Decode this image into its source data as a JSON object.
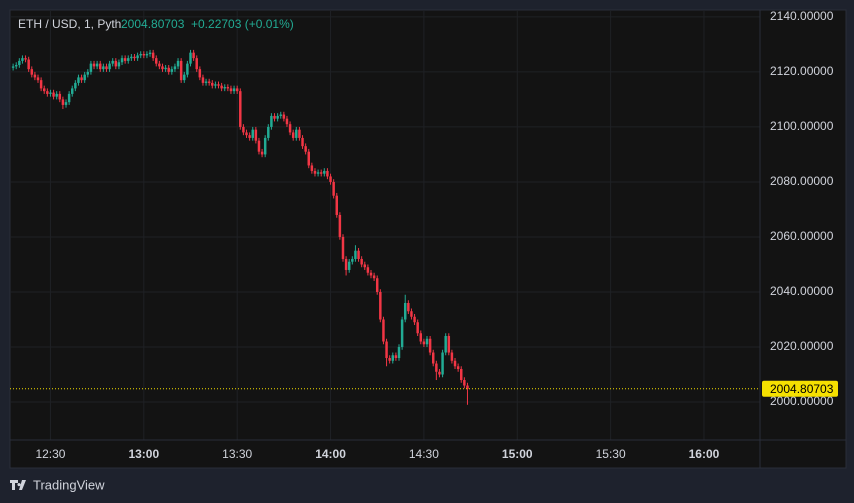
{
  "chart_data": {
    "type": "candlestick",
    "title": "ETH / USD, 1, Pyth",
    "change": "+0.22703 (+0.01%)",
    "last_price": 2004.80703,
    "footer": "TradingView",
    "up_color": "#22ab94",
    "down_color": "#f23645",
    "price_line_color": "#f5e000",
    "grid": true,
    "xlim": [
      "12:17",
      "16:18"
    ],
    "xticks": [
      "12:30",
      "13:00",
      "13:30",
      "14:00",
      "14:30",
      "15:00",
      "15:30",
      "16:00"
    ],
    "ylim": [
      1986.2,
      2142.5
    ],
    "yticks": [
      {
        "value": 2000,
        "label": "2000.00000"
      },
      {
        "value": 2020,
        "label": "2020.00000"
      },
      {
        "value": 2040,
        "label": "2040.00000"
      },
      {
        "value": 2060,
        "label": "2060.00000"
      },
      {
        "value": 2080,
        "label": "2080.00000"
      },
      {
        "value": 2100,
        "label": "2100.00000"
      },
      {
        "value": 2120,
        "label": "2120.00000"
      },
      {
        "value": 2140,
        "label": "2140.00000"
      }
    ],
    "x": [
      "12:18",
      "12:19",
      "12:20",
      "12:21",
      "12:22",
      "12:23",
      "12:24",
      "12:25",
      "12:26",
      "12:27",
      "12:28",
      "12:29",
      "12:30",
      "12:31",
      "12:32",
      "12:33",
      "12:34",
      "12:35",
      "12:36",
      "12:37",
      "12:38",
      "12:39",
      "12:40",
      "12:41",
      "12:42",
      "12:43",
      "12:44",
      "12:45",
      "12:46",
      "12:47",
      "12:48",
      "12:49",
      "12:50",
      "12:51",
      "12:52",
      "12:53",
      "12:54",
      "12:55",
      "12:56",
      "12:57",
      "12:58",
      "12:59",
      "13:00",
      "13:01",
      "13:02",
      "13:03",
      "13:04",
      "13:05",
      "13:06",
      "13:07",
      "13:08",
      "13:09",
      "13:10",
      "13:11",
      "13:12",
      "13:13",
      "13:14",
      "13:15",
      "13:16",
      "13:17",
      "13:18",
      "13:19",
      "13:20",
      "13:21",
      "13:22",
      "13:23",
      "13:24",
      "13:25",
      "13:26",
      "13:27",
      "13:28",
      "13:29",
      "13:30",
      "13:31",
      "13:32",
      "13:33",
      "13:34",
      "13:35",
      "13:36",
      "13:37",
      "13:38",
      "13:39",
      "13:40",
      "13:41",
      "13:42",
      "13:43",
      "13:44",
      "13:45",
      "13:46",
      "13:47",
      "13:48",
      "13:49",
      "13:50",
      "13:51",
      "13:52",
      "13:53",
      "13:54",
      "13:55",
      "13:56",
      "13:57",
      "13:58",
      "13:59",
      "14:00",
      "14:01",
      "14:02",
      "14:03",
      "14:04",
      "14:05",
      "14:06",
      "14:07",
      "14:08",
      "14:09",
      "14:10",
      "14:11",
      "14:12",
      "14:13",
      "14:14",
      "14:15",
      "14:16",
      "14:17",
      "14:18",
      "14:19",
      "14:20",
      "14:21",
      "14:22",
      "14:23",
      "14:24",
      "14:25",
      "14:26",
      "14:27",
      "14:28",
      "14:29",
      "14:30",
      "14:31",
      "14:32",
      "14:33",
      "14:34",
      "14:35",
      "14:36",
      "14:37",
      "14:38",
      "14:39",
      "14:40",
      "14:41",
      "14:42",
      "14:43",
      "14:44"
    ],
    "open": [
      2121.5,
      2122,
      2122.5,
      2124,
      2125,
      2124.5,
      2121,
      2119,
      2118,
      2117,
      2114,
      2113,
      2112,
      2112.5,
      2111,
      2112,
      2110,
      2108,
      2109,
      2112,
      2114,
      2116,
      2118,
      2117,
      2119,
      2120,
      2123,
      2122,
      2123,
      2121,
      2122,
      2121,
      2123,
      2124,
      2122,
      2123.5,
      2125,
      2124,
      2125,
      2125.5,
      2125,
      2126,
      2126.5,
      2126,
      2126.5,
      2127,
      2125,
      2123,
      2122,
      2121,
      2121.5,
      2120,
      2121,
      2122,
      2124,
      2117,
      2119,
      2123,
      2127,
      2125,
      2121,
      2118,
      2116,
      2116.5,
      2116,
      2115,
      2115.5,
      2115,
      2114,
      2114.5,
      2114,
      2113,
      2114,
      2113,
      2100,
      2098,
      2097,
      2096,
      2099,
      2095,
      2091,
      2090,
      2096,
      2100,
      2104,
      2103,
      2104,
      2104.5,
      2103,
      2101,
      2098,
      2096,
      2099,
      2096,
      2093,
      2091,
      2086,
      2084,
      2083,
      2083.5,
      2083,
      2084,
      2082,
      2080,
      2075,
      2068,
      2060,
      2052,
      2048,
      2051,
      2052,
      2055,
      2052,
      2050,
      2049,
      2047,
      2046,
      2045,
      2040,
      2030,
      2022,
      2016,
      2015,
      2017,
      2016,
      2020,
      2030,
      2036,
      2033,
      2031,
      2029,
      2025,
      2022,
      2021,
      2023,
      2018,
      2014,
      2011,
      2010,
      2018,
      2024,
      2018,
      2015,
      2013,
      2012,
      2008,
      2006
    ],
    "high": [
      2123,
      2123.5,
      2125,
      2126,
      2126,
      2125.5,
      2122,
      2120,
      2119,
      2118,
      2115,
      2114,
      2113.5,
      2113.5,
      2113,
      2113,
      2111,
      2110,
      2113,
      2115,
      2117,
      2119,
      2119,
      2120,
      2121,
      2124,
      2124,
      2124,
      2124,
      2123,
      2123,
      2124,
      2125,
      2125,
      2124.5,
      2126,
      2126,
      2126,
      2126.5,
      2126.5,
      2127,
      2127.5,
      2127.5,
      2127.5,
      2128,
      2128,
      2126,
      2124,
      2123,
      2122.5,
      2122.5,
      2122,
      2123,
      2125,
      2125,
      2120,
      2124,
      2128,
      2128,
      2126,
      2122,
      2119,
      2117.5,
      2117.5,
      2117,
      2116.5,
      2116.5,
      2116,
      2115.5,
      2115.5,
      2115,
      2115,
      2115,
      2114,
      2101,
      2099,
      2098,
      2100,
      2100,
      2096,
      2092,
      2097,
      2101,
      2105,
      2105,
      2105,
      2105.5,
      2105.5,
      2104,
      2102,
      2099,
      2100,
      2100,
      2097,
      2094,
      2092,
      2087,
      2085,
      2084.5,
      2084.5,
      2085,
      2085,
      2083,
      2081,
      2076,
      2069,
      2061,
      2053,
      2052,
      2053,
      2057,
      2056,
      2053,
      2051,
      2050,
      2048,
      2047,
      2046,
      2041,
      2031,
      2023,
      2017,
      2018,
      2018,
      2021,
      2031,
      2039,
      2037,
      2034,
      2032,
      2030,
      2026,
      2023,
      2024,
      2024,
      2019,
      2015,
      2012,
      2019,
      2025,
      2025,
      2019,
      2016,
      2014,
      2013,
      2009,
      2007
    ],
    "low": [
      2120.5,
      2121,
      2121.5,
      2123,
      2123.5,
      2120,
      2118,
      2117,
      2116,
      2113,
      2112,
      2111,
      2111,
      2110,
      2110,
      2109,
      2106.5,
      2107,
      2108,
      2111,
      2113,
      2115,
      2116,
      2116,
      2118,
      2119,
      2121,
      2121,
      2120,
      2120,
      2120,
      2120,
      2122,
      2121,
      2121,
      2122.5,
      2123,
      2123,
      2124,
      2124,
      2124,
      2125,
      2125,
      2125,
      2125.5,
      2124,
      2122,
      2121,
      2120,
      2120,
      2119,
      2119,
      2120,
      2121,
      2116,
      2116,
      2118,
      2122,
      2124,
      2120,
      2117,
      2115,
      2115,
      2115,
      2114,
      2114,
      2114,
      2113,
      2113,
      2113,
      2112,
      2112,
      2112,
      2099,
      2097,
      2096,
      2095,
      2095,
      2094,
      2090,
      2089,
      2089,
      2095,
      2099,
      2102,
      2102,
      2103,
      2102,
      2100,
      2097,
      2095,
      2095,
      2095,
      2092,
      2090,
      2085,
      2083,
      2082,
      2082,
      2082,
      2082,
      2081,
      2079,
      2074,
      2067,
      2059,
      2051,
      2046,
      2047,
      2050,
      2051,
      2051,
      2049,
      2048,
      2046,
      2045,
      2044,
      2039,
      2029,
      2021,
      2013,
      2014,
      2014,
      2015,
      2015,
      2019,
      2029,
      2032,
      2030,
      2028,
      2024,
      2021,
      2020,
      2020,
      2017,
      2013,
      2008,
      2009,
      2009,
      2017,
      2017,
      2014,
      2012,
      2011,
      2007,
      2005,
      1999
    ],
    "close": [
      2122,
      2122.5,
      2124,
      2125,
      2124.5,
      2121,
      2119,
      2118,
      2117,
      2114,
      2113,
      2112,
      2112.5,
      2111,
      2112,
      2110,
      2108,
      2109,
      2112,
      2114,
      2116,
      2118,
      2117,
      2119,
      2120,
      2123,
      2122,
      2123,
      2121,
      2122,
      2121,
      2123,
      2124,
      2122,
      2123.5,
      2125,
      2124,
      2125,
      2125.5,
      2125,
      2126,
      2126.5,
      2126,
      2126.5,
      2127,
      2125,
      2123,
      2122,
      2121,
      2121.5,
      2120,
      2121,
      2122,
      2124,
      2117,
      2119,
      2123,
      2127,
      2125,
      2121,
      2118,
      2116,
      2116.5,
      2116,
      2115,
      2115.5,
      2115,
      2114,
      2114.5,
      2114,
      2113,
      2114,
      2113,
      2100,
      2098,
      2097,
      2096,
      2099,
      2095,
      2091,
      2090,
      2096,
      2100,
      2104,
      2103,
      2104,
      2104.5,
      2103,
      2101,
      2098,
      2096,
      2099,
      2096,
      2093,
      2091,
      2086,
      2084,
      2083,
      2083.5,
      2083,
      2084,
      2082,
      2080,
      2075,
      2068,
      2060,
      2052,
      2048,
      2051,
      2052,
      2055,
      2052,
      2050,
      2049,
      2047,
      2046,
      2045,
      2040,
      2030,
      2022,
      2016,
      2015,
      2017,
      2016,
      2020,
      2030,
      2036,
      2033,
      2031,
      2029,
      2025,
      2022,
      2021,
      2023,
      2018,
      2014,
      2011,
      2010,
      2018,
      2024,
      2018,
      2015,
      2013,
      2012,
      2008,
      2006,
      2004.80703
    ]
  }
}
